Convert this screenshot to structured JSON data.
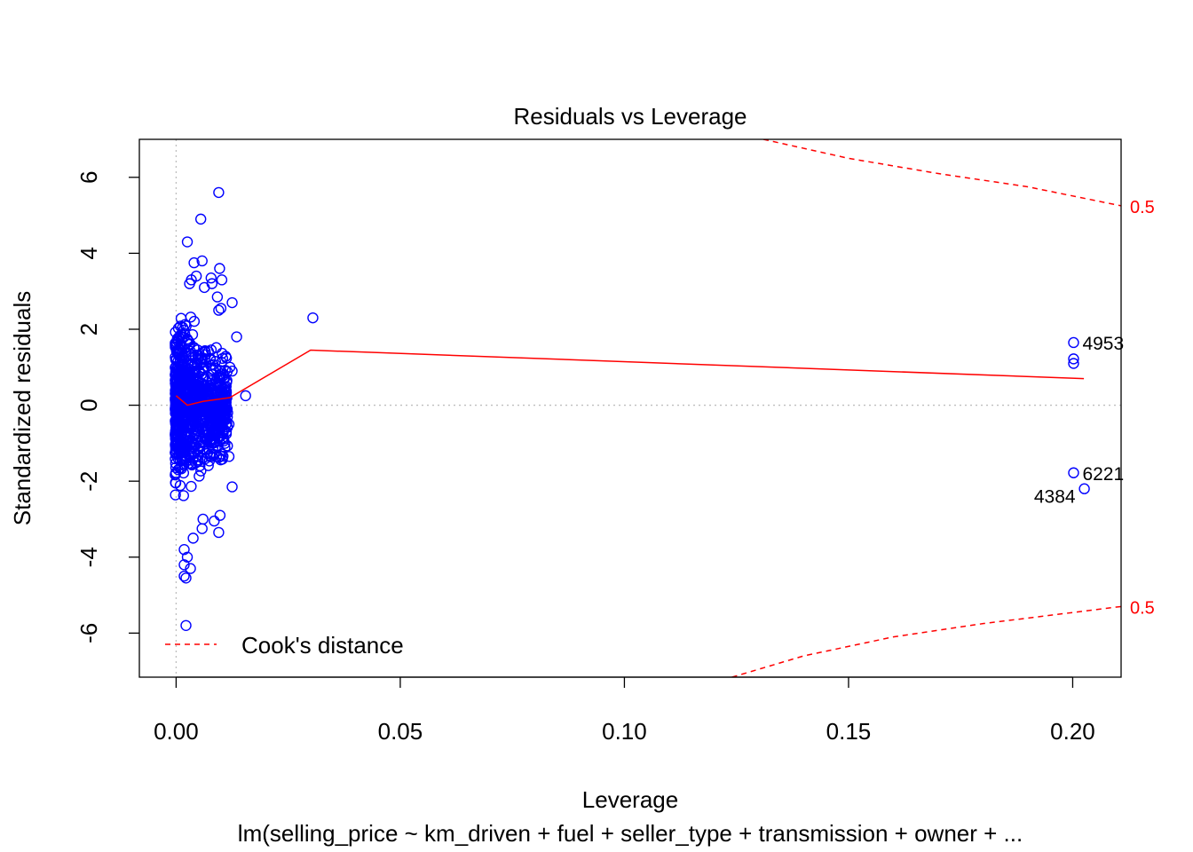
{
  "chart_data": {
    "type": "scatter",
    "title": "Residuals vs Leverage",
    "xlabel": "Leverage",
    "ylabel": "Standardized residuals",
    "subtitle": "lm(selling_price ~ km_driven + fuel + seller_type + transmission + owner +  ...",
    "xlim": [
      -0.0082,
      0.2108
    ],
    "ylim": [
      -7.16,
      7.0
    ],
    "x_ticks": [
      0.0,
      0.05,
      0.1,
      0.15,
      0.2
    ],
    "x_tick_labels": [
      "0.00",
      "0.05",
      "0.10",
      "0.15",
      "0.20"
    ],
    "y_ticks": [
      -6,
      -4,
      -2,
      0,
      2,
      4,
      6
    ],
    "y_tick_labels": [
      "-6",
      "-4",
      "-2",
      "0",
      "2",
      "4",
      "6"
    ],
    "grid": false,
    "reference_lines": {
      "x": 0,
      "y": 0
    },
    "colors": {
      "points": "#0000ff",
      "smooth": "#ff0000",
      "cooks": "#ff0000",
      "reference": "#bebebe"
    },
    "legend": {
      "position": "bottom-left",
      "entries": [
        {
          "label": "Cook's distance",
          "style": "dashed",
          "color": "#ff0000"
        }
      ]
    },
    "cooks_distance": [
      {
        "level": 0.5,
        "label": "0.5",
        "upper": [
          [
            0.131,
            7.0
          ],
          [
            0.15,
            6.5
          ],
          [
            0.17,
            6.1
          ],
          [
            0.19,
            5.75
          ],
          [
            0.2108,
            5.25
          ]
        ],
        "lower": [
          [
            0.124,
            -7.16
          ],
          [
            0.14,
            -6.6
          ],
          [
            0.16,
            -6.1
          ],
          [
            0.18,
            -5.75
          ],
          [
            0.2108,
            -5.3
          ]
        ]
      }
    ],
    "smoother": [
      [
        0.0,
        0.25
      ],
      [
        0.0025,
        0.0
      ],
      [
        0.006,
        0.1
      ],
      [
        0.012,
        0.2
      ],
      [
        0.03,
        1.45
      ],
      [
        0.2025,
        0.7
      ]
    ],
    "labeled_points": [
      {
        "id": "4953",
        "x": 0.2002,
        "y": 1.65
      },
      {
        "id": "6221",
        "x": 0.2002,
        "y": -1.78
      },
      {
        "id": "4384",
        "x": 0.2026,
        "y": -2.2
      }
    ],
    "outlier_points": [
      [
        0.0095,
        5.6
      ],
      [
        0.0055,
        4.9
      ],
      [
        0.0025,
        4.3
      ],
      [
        0.004,
        3.75
      ],
      [
        0.0058,
        3.8
      ],
      [
        0.0097,
        3.6
      ],
      [
        0.0102,
        3.3
      ],
      [
        0.0078,
        3.35
      ],
      [
        0.008,
        3.2
      ],
      [
        0.0034,
        3.3
      ],
      [
        0.003,
        3.2
      ],
      [
        0.0045,
        3.4
      ],
      [
        0.0063,
        3.1
      ],
      [
        0.0092,
        2.85
      ],
      [
        0.0125,
        2.7
      ],
      [
        0.01,
        2.55
      ],
      [
        0.0095,
        2.5
      ],
      [
        0.0135,
        1.8
      ],
      [
        0.0305,
        2.3
      ],
      [
        0.0155,
        0.25
      ],
      [
        0.0125,
        0.9
      ],
      [
        0.012,
        1.0
      ],
      [
        0.0115,
        -0.2
      ],
      [
        0.0118,
        -0.5
      ],
      [
        0.0112,
        -0.7
      ],
      [
        0.0118,
        -1.35
      ],
      [
        0.0125,
        -2.15
      ],
      [
        0.0098,
        -2.9
      ],
      [
        0.0095,
        -3.35
      ],
      [
        0.0085,
        -3.05
      ],
      [
        0.006,
        -3.0
      ],
      [
        0.0058,
        -3.25
      ],
      [
        0.0038,
        -3.5
      ],
      [
        0.0018,
        -3.8
      ],
      [
        0.0025,
        -4.0
      ],
      [
        0.0018,
        -4.2
      ],
      [
        0.0032,
        -4.3
      ],
      [
        0.0018,
        -4.5
      ],
      [
        0.0022,
        -4.55
      ],
      [
        0.0022,
        -5.8
      ],
      [
        0.2002,
        1.22
      ],
      [
        0.2002,
        1.1
      ],
      [
        0.2002,
        1.65
      ],
      [
        0.2002,
        -1.78
      ],
      [
        0.2026,
        -2.2
      ]
    ],
    "cluster_note_hidden": "",
    "density_cluster": {
      "x_range": [
        -0.0002,
        0.0115
      ],
      "y_range": [
        -3.0,
        2.6
      ],
      "count": 900
    }
  }
}
